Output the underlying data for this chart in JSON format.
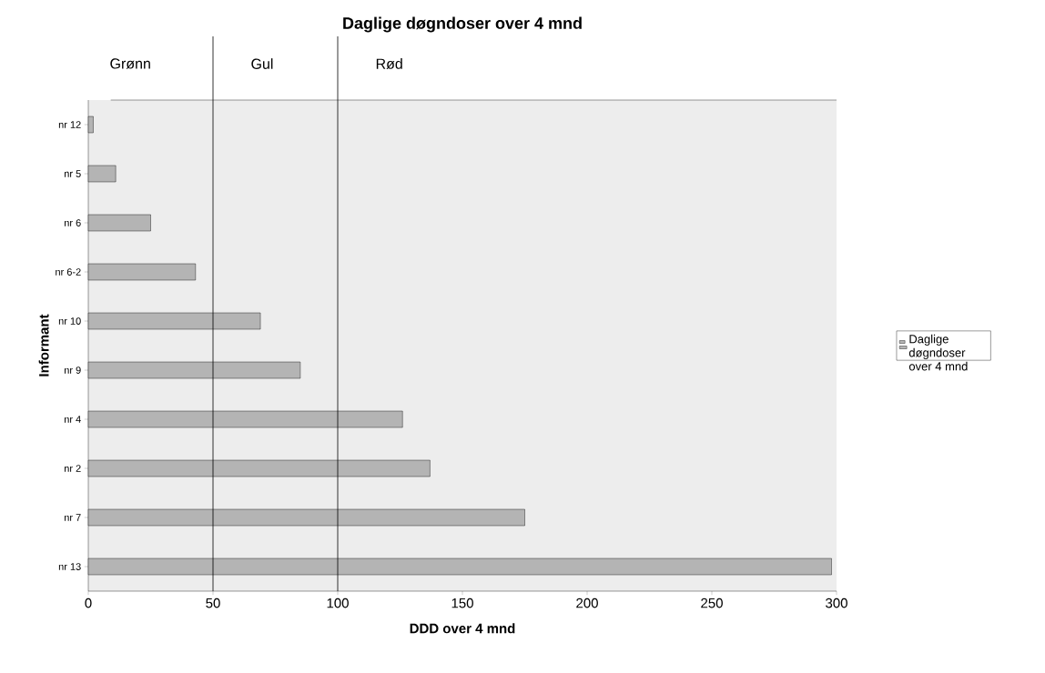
{
  "chart_data": {
    "type": "bar",
    "orientation": "horizontal",
    "title": "Daglige døgndoser over 4 mnd",
    "xlabel": "DDD over 4 mnd",
    "ylabel": "Informant",
    "categories": [
      "nr 12",
      "nr 5",
      "nr 6",
      "nr 6-2",
      "nr 10",
      "nr 9",
      "nr 4",
      "nr 2",
      "nr 7",
      "nr 13"
    ],
    "series": [
      {
        "name": "Daglige døgndoser over 4 mnd",
        "color": "#b4b4b4",
        "values": [
          2,
          11,
          25,
          43,
          69,
          85,
          126,
          137,
          175,
          298
        ]
      }
    ],
    "xlim": [
      0,
      300
    ],
    "xticks": [
      0,
      50,
      100,
      150,
      200,
      250,
      300
    ],
    "ref_lines": [
      {
        "axis": "x",
        "value": 50,
        "label": "Gul",
        "color": "#000000"
      },
      {
        "axis": "x",
        "value": 100,
        "label": "Rød",
        "color": "#000000"
      }
    ],
    "annotations": [
      "Grønn"
    ],
    "legend": "right",
    "grid": false
  }
}
